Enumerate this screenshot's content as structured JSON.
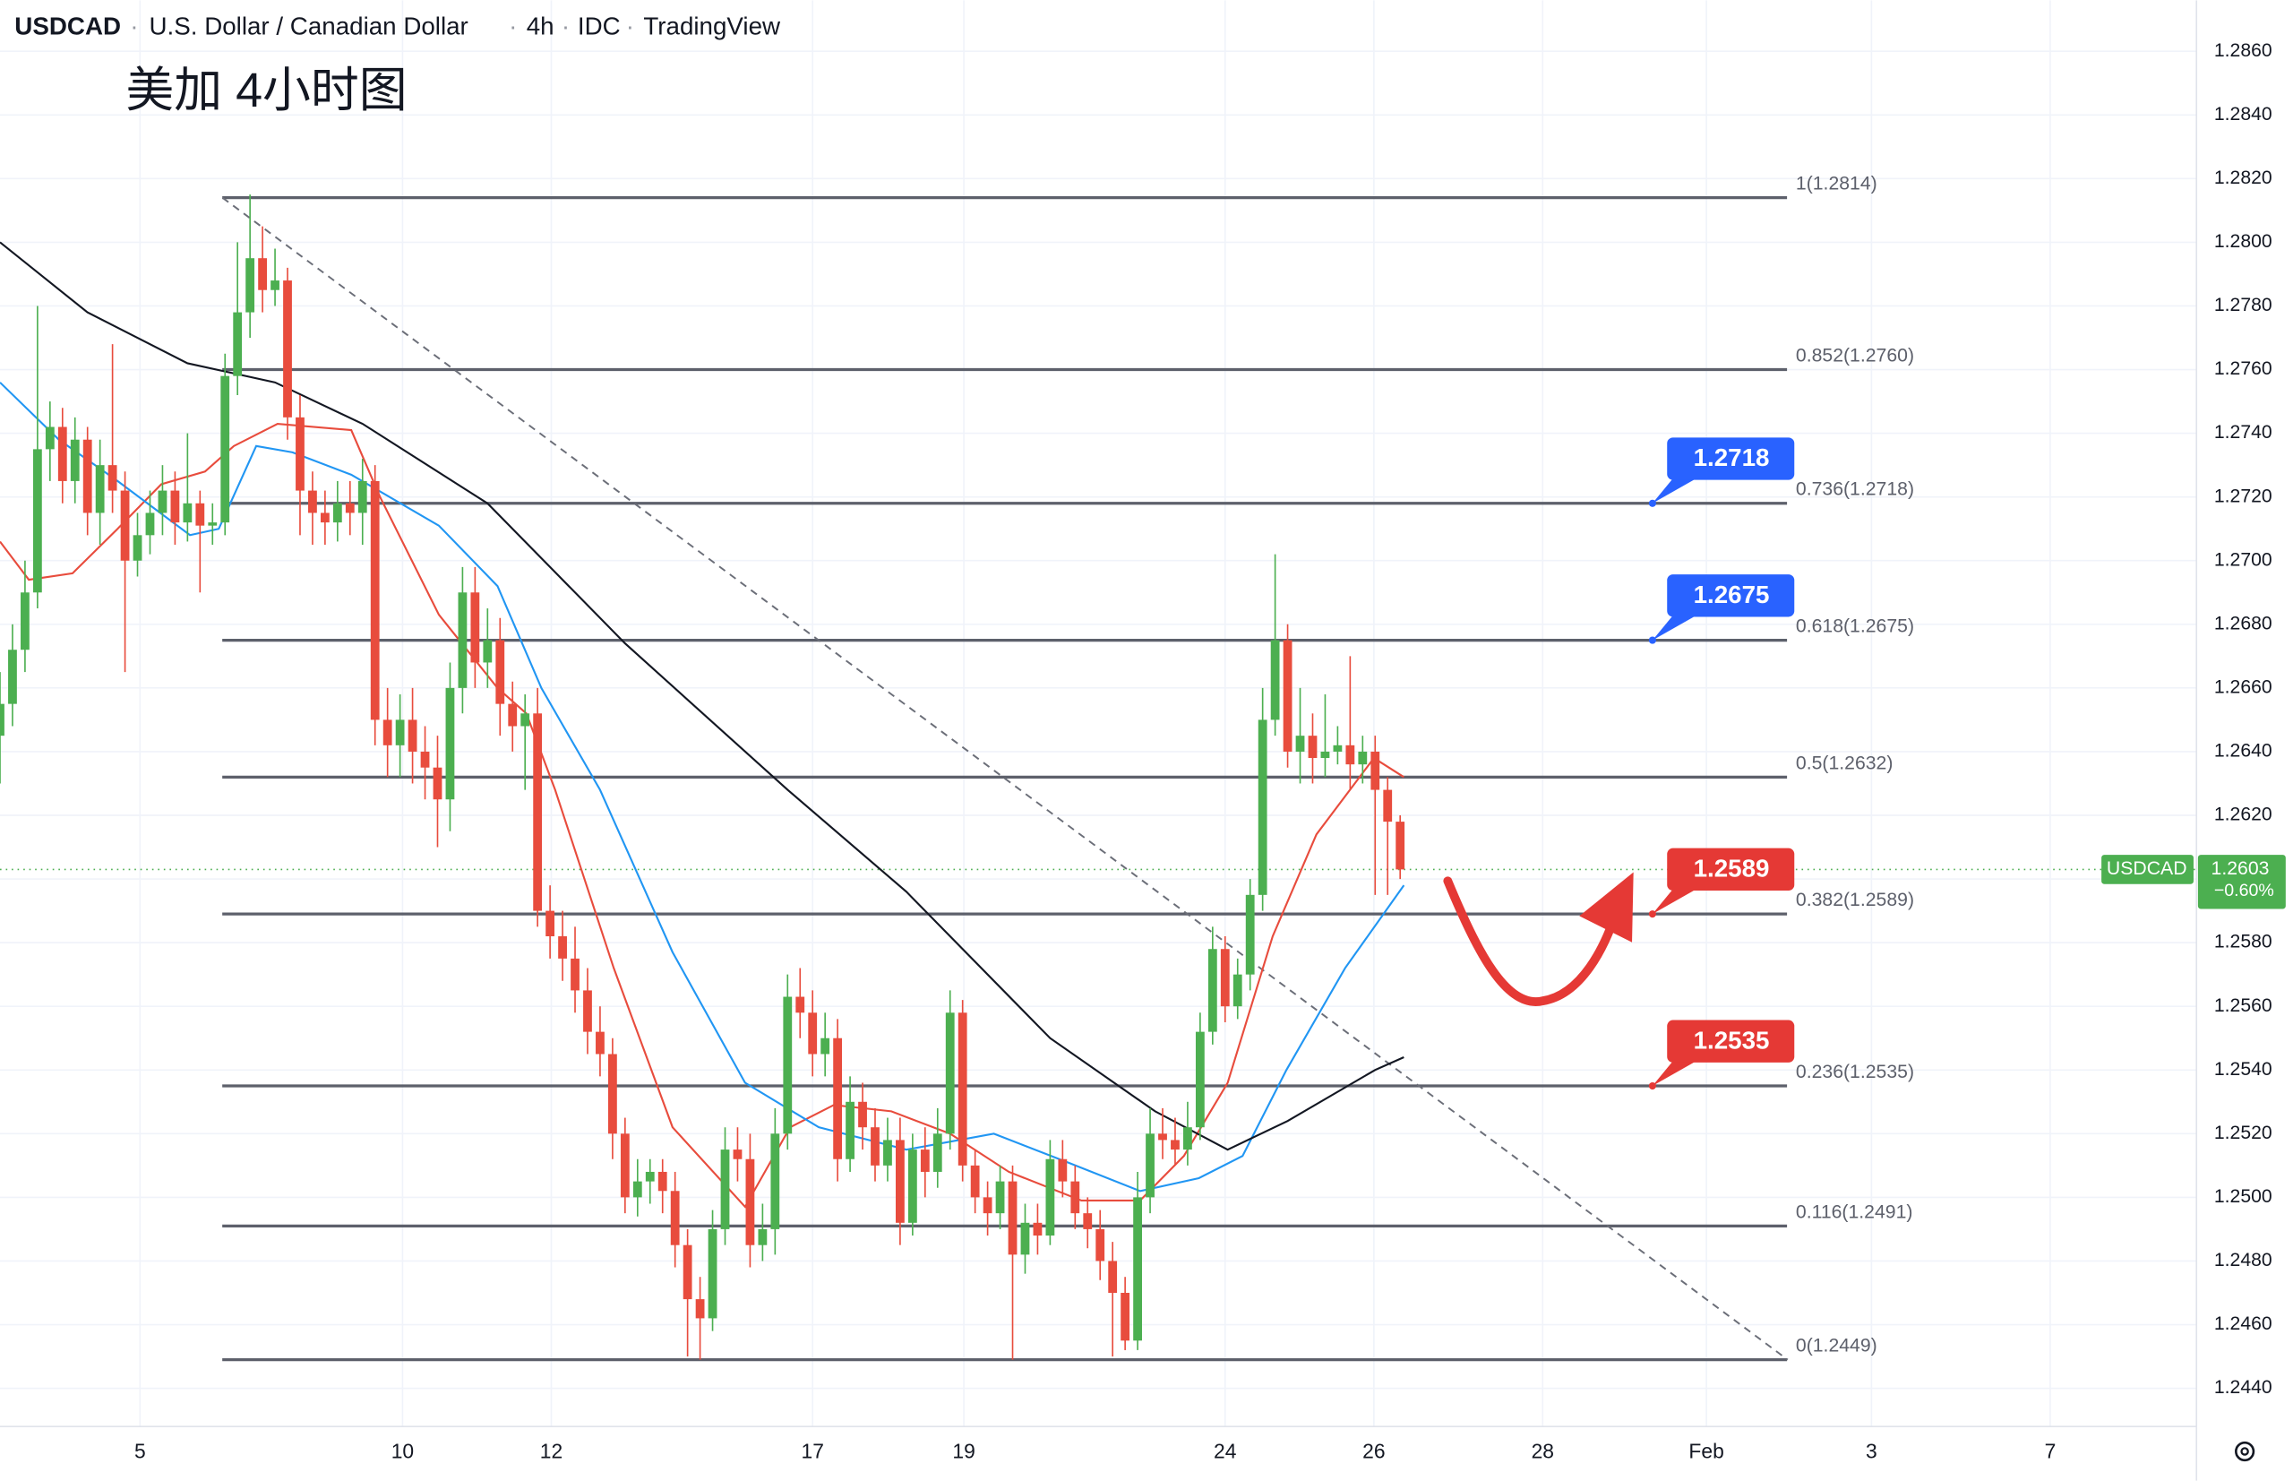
{
  "header": {
    "symbol": "USDCAD",
    "name": "U.S. Dollar / Canadian Dollar",
    "interval": "4h",
    "source": "IDC",
    "brand": "TradingView"
  },
  "chart_data": {
    "type": "candlestick",
    "title": "美加 4小时图",
    "x": [
      0,
      1,
      2,
      3,
      4,
      5,
      6,
      7,
      8,
      9,
      10,
      11,
      12,
      13,
      14,
      15,
      16,
      17,
      18,
      19,
      20,
      21,
      22,
      23,
      24,
      25,
      26,
      27,
      28,
      29,
      30,
      31,
      32,
      33,
      34,
      35,
      36,
      37,
      38,
      39,
      40,
      41,
      42,
      43,
      44,
      45,
      46,
      47,
      48,
      49,
      50,
      51,
      52,
      53,
      54,
      55,
      56,
      57,
      58,
      59,
      60,
      61,
      62,
      63,
      64,
      65,
      66,
      67,
      68,
      69,
      70,
      71,
      72,
      73,
      74,
      75,
      76,
      77,
      78,
      79,
      80,
      81,
      82,
      83,
      84,
      85,
      86,
      87,
      88,
      89,
      90,
      91,
      92,
      93,
      94,
      95,
      96,
      97,
      98,
      99,
      100,
      101,
      102,
      103,
      104,
      105,
      106,
      107,
      108,
      109,
      110,
      111,
      112
    ],
    "open": [
      1.2645,
      1.2655,
      1.2672,
      1.269,
      1.2735,
      1.2742,
      1.2725,
      1.2738,
      1.2715,
      1.273,
      1.2722,
      1.27,
      1.2708,
      1.2715,
      1.2722,
      1.2712,
      1.2718,
      1.2711,
      1.2712,
      1.2758,
      1.2778,
      1.2795,
      1.2785,
      1.2788,
      1.2745,
      1.2722,
      1.2715,
      1.2712,
      1.2718,
      1.2715,
      1.2725,
      1.265,
      1.2642,
      1.265,
      1.264,
      1.2635,
      1.2625,
      1.266,
      1.269,
      1.2668,
      1.2675,
      1.2655,
      1.2648,
      1.2652,
      1.259,
      1.2582,
      1.2575,
      1.2565,
      1.2552,
      1.2545,
      1.252,
      1.25,
      1.2505,
      1.2508,
      1.2502,
      1.2485,
      1.2468,
      1.2462,
      1.249,
      1.2515,
      1.2512,
      1.2485,
      1.249,
      1.252,
      1.2563,
      1.2558,
      1.2545,
      1.255,
      1.2512,
      1.253,
      1.2522,
      1.251,
      1.2518,
      1.2492,
      1.2515,
      1.2508,
      1.252,
      1.2558,
      1.251,
      1.25,
      1.2495,
      1.2505,
      1.2482,
      1.2492,
      1.2488,
      1.2512,
      1.2505,
      1.2495,
      1.249,
      1.248,
      1.247,
      1.2455,
      1.25,
      1.252,
      1.2518,
      1.2515,
      1.2522,
      1.2552,
      1.2578,
      1.256,
      1.257,
      1.2595,
      1.265,
      1.2675,
      1.264,
      1.2645,
      1.2638,
      1.264,
      1.2642,
      1.2636,
      1.264,
      1.2628,
      1.2618
    ],
    "high": [
      1.2665,
      1.268,
      1.27,
      1.278,
      1.275,
      1.2748,
      1.2745,
      1.2742,
      1.2738,
      1.2768,
      1.2728,
      1.2715,
      1.2722,
      1.273,
      1.2728,
      1.274,
      1.2722,
      1.2718,
      1.2765,
      1.28,
      1.2815,
      1.2805,
      1.2798,
      1.2792,
      1.2752,
      1.2728,
      1.2722,
      1.2725,
      1.2725,
      1.2732,
      1.273,
      1.266,
      1.2658,
      1.266,
      1.2648,
      1.2645,
      1.2668,
      1.2698,
      1.2698,
      1.2685,
      1.2682,
      1.2662,
      1.2658,
      1.266,
      1.2598,
      1.259,
      1.2585,
      1.2572,
      1.256,
      1.255,
      1.2525,
      1.2512,
      1.2512,
      1.2512,
      1.2508,
      1.249,
      1.2475,
      1.2496,
      1.2522,
      1.2522,
      1.252,
      1.2498,
      1.2528,
      1.257,
      1.2572,
      1.2565,
      1.2558,
      1.2556,
      1.2538,
      1.2536,
      1.2528,
      1.2525,
      1.2525,
      1.252,
      1.2522,
      1.2528,
      1.2565,
      1.2562,
      1.2515,
      1.2505,
      1.251,
      1.251,
      1.2498,
      1.2498,
      1.2518,
      1.2518,
      1.251,
      1.25,
      1.2496,
      1.2486,
      1.2475,
      1.2508,
      1.2528,
      1.2528,
      1.2525,
      1.253,
      1.2558,
      1.2585,
      1.2582,
      1.2575,
      1.26,
      1.266,
      1.2702,
      1.268,
      1.266,
      1.2652,
      1.2658,
      1.2648,
      1.267,
      1.2645,
      1.2645,
      1.2632,
      1.262
    ],
    "low": [
      1.263,
      1.2648,
      1.2665,
      1.2685,
      1.2725,
      1.2718,
      1.2718,
      1.2708,
      1.2705,
      1.2715,
      1.2665,
      1.2695,
      1.2702,
      1.2708,
      1.2705,
      1.2706,
      1.269,
      1.2705,
      1.2708,
      1.2752,
      1.277,
      1.2778,
      1.278,
      1.2738,
      1.2708,
      1.2705,
      1.2705,
      1.2706,
      1.2708,
      1.2705,
      1.2642,
      1.2632,
      1.2632,
      1.263,
      1.2625,
      1.261,
      1.2615,
      1.2652,
      1.266,
      1.266,
      1.2645,
      1.264,
      1.2628,
      1.2585,
      1.2575,
      1.2568,
      1.2558,
      1.2545,
      1.2538,
      1.2512,
      1.2495,
      1.2494,
      1.2498,
      1.2495,
      1.2478,
      1.245,
      1.2449,
      1.2458,
      1.2485,
      1.2505,
      1.2478,
      1.248,
      1.2482,
      1.2515,
      1.255,
      1.2538,
      1.2538,
      1.2505,
      1.2508,
      1.2515,
      1.2505,
      1.2505,
      1.2485,
      1.2488,
      1.25,
      1.2503,
      1.2515,
      1.2505,
      1.2495,
      1.2488,
      1.249,
      1.2449,
      1.2476,
      1.2482,
      1.2485,
      1.25,
      1.249,
      1.2484,
      1.2474,
      1.245,
      1.2452,
      1.2452,
      1.2495,
      1.2512,
      1.251,
      1.251,
      1.2518,
      1.2548,
      1.2555,
      1.2556,
      1.2565,
      1.259,
      1.2645,
      1.2635,
      1.263,
      1.263,
      1.2632,
      1.2636,
      1.2628,
      1.263,
      1.2595,
      1.2595,
      1.26
    ],
    "close": [
      1.2655,
      1.2672,
      1.269,
      1.2735,
      1.2742,
      1.2725,
      1.2738,
      1.2715,
      1.273,
      1.2722,
      1.27,
      1.2708,
      1.2715,
      1.2722,
      1.2712,
      1.2718,
      1.2711,
      1.2712,
      1.2758,
      1.2778,
      1.2795,
      1.2785,
      1.2788,
      1.2745,
      1.2722,
      1.2715,
      1.2712,
      1.2718,
      1.2715,
      1.2725,
      1.265,
      1.2642,
      1.265,
      1.264,
      1.2635,
      1.2625,
      1.266,
      1.269,
      1.2668,
      1.2675,
      1.2655,
      1.2648,
      1.2652,
      1.259,
      1.2582,
      1.2575,
      1.2565,
      1.2552,
      1.2545,
      1.252,
      1.25,
      1.2505,
      1.2508,
      1.2502,
      1.2485,
      1.2468,
      1.2462,
      1.249,
      1.2515,
      1.2512,
      1.2485,
      1.249,
      1.252,
      1.2563,
      1.2558,
      1.2545,
      1.255,
      1.2512,
      1.253,
      1.2522,
      1.251,
      1.2518,
      1.2492,
      1.2515,
      1.2508,
      1.252,
      1.2558,
      1.251,
      1.25,
      1.2495,
      1.2505,
      1.2482,
      1.2492,
      1.2488,
      1.2512,
      1.2505,
      1.2495,
      1.249,
      1.248,
      1.247,
      1.2455,
      1.25,
      1.252,
      1.2518,
      1.2515,
      1.2522,
      1.2552,
      1.2578,
      1.256,
      1.257,
      1.2595,
      1.265,
      1.2675,
      1.264,
      1.2645,
      1.2638,
      1.264,
      1.2642,
      1.2636,
      1.264,
      1.2628,
      1.2618,
      1.2603
    ],
    "up_color": "#4caf50",
    "down_color": "#e84c3d",
    "series": [
      {
        "color": "#e84c3d",
        "x": [
          0,
          2.3,
          5.8,
          9.4,
          12.9,
          16.4,
          18.7,
          22.2,
          28.1,
          30.4,
          35.1,
          39.8,
          42.1,
          44.4,
          49.1,
          53.8,
          59.6,
          63.2,
          66.7,
          71.3,
          76,
          80.7,
          86.5,
          91.2,
          94.7,
          98.2,
          101.8,
          105.3,
          109.9,
          112.3
        ],
        "values": [
          1.2706,
          1.2694,
          1.2696,
          1.271,
          1.2724,
          1.2728,
          1.2736,
          1.2743,
          1.2741,
          1.272,
          1.2683,
          1.266,
          1.2652,
          1.2628,
          1.2572,
          1.2522,
          1.2497,
          1.2522,
          1.2529,
          1.2527,
          1.252,
          1.2508,
          1.2499,
          1.2499,
          1.2513,
          1.2536,
          1.2582,
          1.2614,
          1.2638,
          1.2632
        ]
      },
      {
        "color": "#2196f3",
        "x": [
          0,
          4.7,
          9.4,
          15.2,
          17.5,
          20.5,
          23.4,
          28.1,
          35.1,
          39.8,
          43.3,
          48,
          53.8,
          59.6,
          65.5,
          72.5,
          79.5,
          85.4,
          91.2,
          95.9,
          99.4,
          102.9,
          107.6,
          112.3
        ],
        "values": [
          1.2756,
          1.2738,
          1.2725,
          1.2708,
          1.271,
          1.2736,
          1.2734,
          1.2727,
          1.2711,
          1.2692,
          1.266,
          1.2628,
          1.2577,
          1.2536,
          1.2522,
          1.2515,
          1.252,
          1.2511,
          1.2502,
          1.2506,
          1.2513,
          1.254,
          1.2572,
          1.2598
        ]
      },
      {
        "color": "#131722",
        "x": [
          0,
          7,
          15,
          22,
          29,
          39,
          50,
          63,
          72.5,
          84,
          92.4,
          98.2,
          103,
          110,
          112.3
        ],
        "values": [
          1.28,
          1.2778,
          1.2762,
          1.2756,
          1.2743,
          1.2718,
          1.2674,
          1.2628,
          1.2596,
          1.255,
          1.2527,
          1.2515,
          1.2524,
          1.254,
          1.2544
        ]
      }
    ],
    "fib_levels": [
      {
        "value": 1.2814,
        "label": "1(1.2814)"
      },
      {
        "value": 1.276,
        "label": "0.852(1.2760)"
      },
      {
        "value": 1.2718,
        "label": "0.736(1.2718)"
      },
      {
        "value": 1.2675,
        "label": "0.618(1.2675)"
      },
      {
        "value": 1.2632,
        "label": "0.5(1.2632)"
      },
      {
        "value": 1.2589,
        "label": "0.382(1.2589)"
      },
      {
        "value": 1.2535,
        "label": "0.236(1.2535)"
      },
      {
        "value": 1.2491,
        "label": "0.116(1.2491)"
      },
      {
        "value": 1.2449,
        "label": "0(1.2449)"
      }
    ],
    "callouts": [
      {
        "value": 1.2718,
        "color": "#2962ff"
      },
      {
        "value": 1.2675,
        "color": "#2962ff"
      },
      {
        "value": 1.2589,
        "color": "#e53935"
      },
      {
        "value": 1.2535,
        "color": "#e53935"
      }
    ],
    "trendline": {
      "x": [
        17.8,
        143
      ],
      "values": [
        1.2814,
        1.2449
      ]
    },
    "last": {
      "symbol": "USDCAD",
      "value": 1.2603,
      "change_label": "−0.60%",
      "color": "#4caf50"
    },
    "xlim": [
      0,
      175.7
    ],
    "xticks": [
      {
        "value": 11.2,
        "label": "5"
      },
      {
        "value": 32.2,
        "label": "10"
      },
      {
        "value": 44.1,
        "label": "12"
      },
      {
        "value": 65,
        "label": "17"
      },
      {
        "value": 77.1,
        "label": "19"
      },
      {
        "value": 98,
        "label": "24"
      },
      {
        "value": 109.9,
        "label": "26"
      },
      {
        "value": 123.4,
        "label": "28"
      },
      {
        "value": 136.5,
        "label": "Feb"
      },
      {
        "value": 149.7,
        "label": "3"
      },
      {
        "value": 164,
        "label": "7"
      }
    ],
    "ylim": [
      1.2428,
      1.2876
    ],
    "yticks": [
      {
        "value": 1.244,
        "label": "1.2440"
      },
      {
        "value": 1.246,
        "label": "1.2460"
      },
      {
        "value": 1.248,
        "label": "1.2480"
      },
      {
        "value": 1.25,
        "label": "1.2500"
      },
      {
        "value": 1.252,
        "label": "1.2520"
      },
      {
        "value": 1.254,
        "label": "1.2540"
      },
      {
        "value": 1.256,
        "label": "1.2560"
      },
      {
        "value": 1.258,
        "label": "1.2580"
      },
      {
        "value": 1.26,
        "label": "1.2600"
      },
      {
        "value": 1.262,
        "label": "1.2620"
      },
      {
        "value": 1.264,
        "label": "1.2640"
      },
      {
        "value": 1.266,
        "label": "1.2660"
      },
      {
        "value": 1.268,
        "label": "1.2680"
      },
      {
        "value": 1.27,
        "label": "1.2700"
      },
      {
        "value": 1.272,
        "label": "1.2720"
      },
      {
        "value": 1.274,
        "label": "1.2740"
      },
      {
        "value": 1.276,
        "label": "1.2760"
      },
      {
        "value": 1.278,
        "label": "1.2780"
      },
      {
        "value": 1.28,
        "label": "1.2800"
      },
      {
        "value": 1.282,
        "label": "1.2820"
      },
      {
        "value": 1.284,
        "label": "1.2840"
      },
      {
        "value": 1.286,
        "label": "1.2860"
      }
    ],
    "grid": true
  }
}
